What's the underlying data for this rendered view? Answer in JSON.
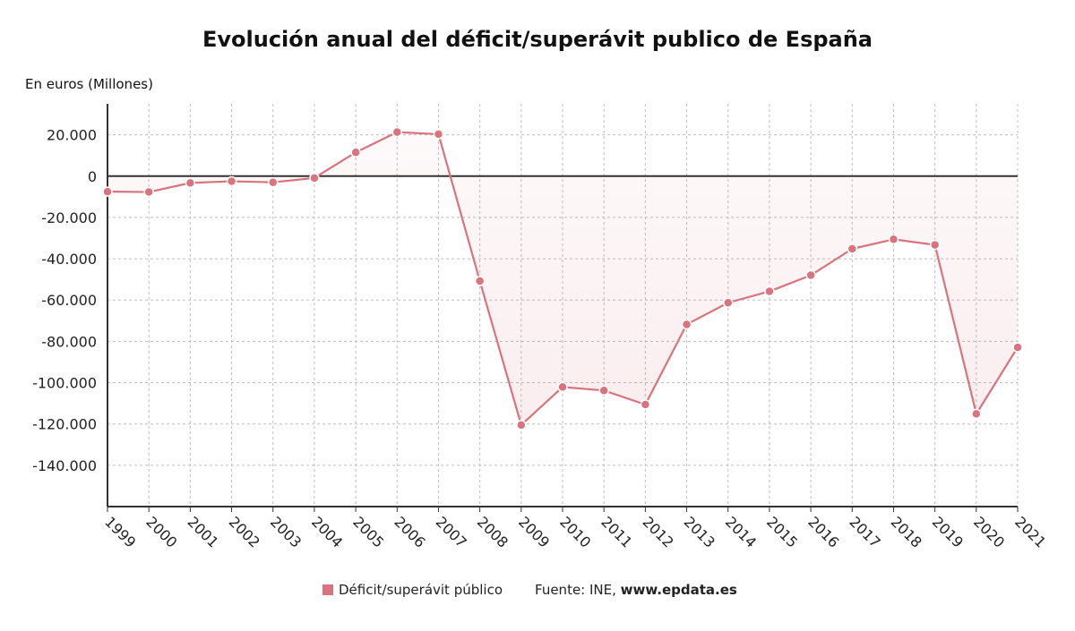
{
  "chart_data": {
    "type": "line",
    "title": "Evolución anual del déficit/superávit publico de España",
    "ylabel": "En euros (Millones)",
    "xlabel": "",
    "x": [
      "1999",
      "2000",
      "2001",
      "2002",
      "2003",
      "2004",
      "2005",
      "2006",
      "2007",
      "2008",
      "2009",
      "2010",
      "2011",
      "2012",
      "2013",
      "2014",
      "2015",
      "2016",
      "2017",
      "2018",
      "2019",
      "2020",
      "2021"
    ],
    "series": [
      {
        "name": "Déficit/superávit público",
        "values": [
          -7500,
          -7700,
          -3300,
          -2500,
          -3000,
          -900,
          11500,
          21300,
          20300,
          -50800,
          -120500,
          -102100,
          -103800,
          -110600,
          -71800,
          -61300,
          -55800,
          -48000,
          -35200,
          -30600,
          -33300,
          -115100,
          -82900
        ]
      }
    ],
    "ylim": [
      -160000,
      35000
    ],
    "yticks": [
      20000,
      0,
      -20000,
      -40000,
      -60000,
      -80000,
      -100000,
      -120000,
      -140000
    ],
    "ytick_labels": [
      "20.000",
      "0",
      "-20.000",
      "-40.000",
      "-60.000",
      "-80.000",
      "-100.000",
      "-120.000",
      "-140.000"
    ],
    "grid": true,
    "legend_position": "bottom",
    "series_color": "#d9737e"
  },
  "legend": {
    "label": "Déficit/superávit público"
  },
  "source": {
    "prefix": "Fuente: INE, ",
    "site": "www.epdata.es"
  }
}
